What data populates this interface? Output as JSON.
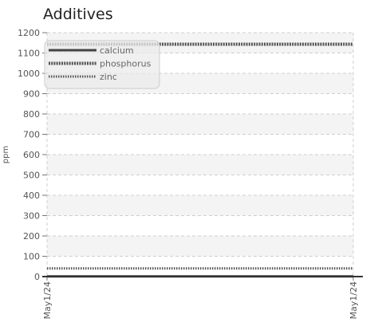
{
  "chart_data": {
    "type": "line",
    "title": "Additives",
    "ylabel": "ppm",
    "xlabel": "",
    "x": [
      "May1/24",
      "May1/24"
    ],
    "ylim": [
      0,
      1200
    ],
    "yticks": [
      0,
      100,
      200,
      300,
      400,
      500,
      600,
      700,
      800,
      900,
      1000,
      1100,
      1200
    ],
    "grid": true,
    "legend_position": "top-left",
    "series": [
      {
        "name": "calcium",
        "values": [
          1,
          1
        ],
        "style": "solid",
        "color": "#444444"
      },
      {
        "name": "phosphorus",
        "values": [
          1143,
          1143
        ],
        "style": "dense-dotted",
        "color": "#555555"
      },
      {
        "name": "zinc",
        "values": [
          40,
          40
        ],
        "style": "dotted",
        "color": "#555555"
      }
    ]
  }
}
